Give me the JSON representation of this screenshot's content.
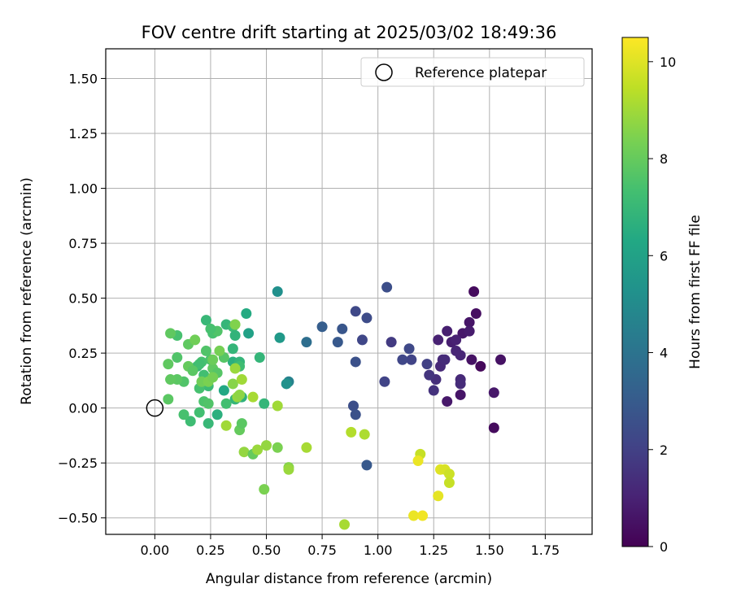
{
  "chart_data": {
    "type": "scatter",
    "title": "FOV centre drift starting at 2025/03/02 18:49:36",
    "xlabel": "Angular distance from reference (arcmin)",
    "ylabel": "Rotation from reference (arcmin)",
    "xlim": [
      -0.22,
      1.96
    ],
    "ylim": [
      -0.575,
      1.635
    ],
    "xticks": [
      "0.00",
      "0.25",
      "0.50",
      "0.75",
      "1.00",
      "1.25",
      "1.50",
      "1.75"
    ],
    "xtick_values": [
      0,
      0.25,
      0.5,
      0.75,
      1.0,
      1.25,
      1.5,
      1.75
    ],
    "yticks": [
      "−0.50",
      "−0.25",
      "0.00",
      "0.25",
      "0.50",
      "0.75",
      "1.00",
      "1.25",
      "1.50"
    ],
    "ytick_values": [
      -0.5,
      -0.25,
      0,
      0.25,
      0.5,
      0.75,
      1.0,
      1.25,
      1.5
    ],
    "grid": true,
    "legend": {
      "placement": "top-right",
      "label": "Reference platepar"
    },
    "reference_point": {
      "x": 0.0,
      "y": 0.0
    },
    "colorbar": {
      "label": "Hours from first FF file",
      "colormap": "viridis",
      "range": [
        0,
        10.5
      ],
      "ticks": [
        "0",
        "2",
        "4",
        "6",
        "8",
        "10"
      ],
      "tick_values": [
        0,
        2,
        4,
        6,
        8,
        10
      ]
    },
    "points": [
      {
        "x": 1.43,
        "y": 0.53,
        "h": 0.3
      },
      {
        "x": 1.44,
        "y": 0.43,
        "h": 0.4
      },
      {
        "x": 1.41,
        "y": 0.39,
        "h": 0.6
      },
      {
        "x": 1.38,
        "y": 0.34,
        "h": 0.7
      },
      {
        "x": 1.41,
        "y": 0.35,
        "h": 0.8
      },
      {
        "x": 1.31,
        "y": 0.35,
        "h": 0.9
      },
      {
        "x": 1.33,
        "y": 0.3,
        "h": 0.9
      },
      {
        "x": 1.35,
        "y": 0.31,
        "h": 1.0
      },
      {
        "x": 1.27,
        "y": 0.31,
        "h": 1.0
      },
      {
        "x": 1.35,
        "y": 0.26,
        "h": 1.1
      },
      {
        "x": 1.37,
        "y": 0.24,
        "h": 1.1
      },
      {
        "x": 1.42,
        "y": 0.22,
        "h": 0.5
      },
      {
        "x": 1.46,
        "y": 0.19,
        "h": 0.2
      },
      {
        "x": 1.55,
        "y": 0.22,
        "h": 0.5
      },
      {
        "x": 1.29,
        "y": 0.22,
        "h": 1.2
      },
      {
        "x": 1.28,
        "y": 0.19,
        "h": 1.2
      },
      {
        "x": 1.3,
        "y": 0.22,
        "h": 1.3
      },
      {
        "x": 1.31,
        "y": 0.03,
        "h": 0.7
      },
      {
        "x": 1.37,
        "y": 0.13,
        "h": 1.2
      },
      {
        "x": 1.37,
        "y": 0.11,
        "h": 1.3
      },
      {
        "x": 1.37,
        "y": 0.06,
        "h": 0.6
      },
      {
        "x": 1.52,
        "y": 0.07,
        "h": 0.7
      },
      {
        "x": 1.52,
        "y": -0.09,
        "h": 0.3
      },
      {
        "x": 1.26,
        "y": 0.13,
        "h": 1.4
      },
      {
        "x": 1.23,
        "y": 0.15,
        "h": 1.6
      },
      {
        "x": 1.25,
        "y": 0.08,
        "h": 1.5
      },
      {
        "x": 1.22,
        "y": 0.2,
        "h": 2.0
      },
      {
        "x": 1.15,
        "y": 0.22,
        "h": 2.1
      },
      {
        "x": 1.14,
        "y": 0.27,
        "h": 2.3
      },
      {
        "x": 1.11,
        "y": 0.22,
        "h": 2.2
      },
      {
        "x": 1.06,
        "y": 0.3,
        "h": 1.8
      },
      {
        "x": 1.03,
        "y": 0.12,
        "h": 2.1
      },
      {
        "x": 1.04,
        "y": 0.55,
        "h": 2.5
      },
      {
        "x": 0.95,
        "y": 0.41,
        "h": 2.4
      },
      {
        "x": 0.9,
        "y": 0.44,
        "h": 2.3
      },
      {
        "x": 0.93,
        "y": 0.31,
        "h": 2.2
      },
      {
        "x": 0.9,
        "y": 0.21,
        "h": 2.6
      },
      {
        "x": 0.84,
        "y": 0.36,
        "h": 2.8
      },
      {
        "x": 0.82,
        "y": 0.3,
        "h": 2.9
      },
      {
        "x": 0.75,
        "y": 0.37,
        "h": 3.1
      },
      {
        "x": 0.68,
        "y": 0.3,
        "h": 3.8
      },
      {
        "x": 0.89,
        "y": 0.01,
        "h": 2.5
      },
      {
        "x": 0.9,
        "y": -0.03,
        "h": 2.6
      },
      {
        "x": 0.95,
        "y": -0.26,
        "h": 2.9
      },
      {
        "x": 0.55,
        "y": 0.53,
        "h": 5.2
      },
      {
        "x": 0.56,
        "y": 0.32,
        "h": 5.6
      },
      {
        "x": 0.6,
        "y": 0.12,
        "h": 4.6
      },
      {
        "x": 0.59,
        "y": 0.11,
        "h": 5.3
      },
      {
        "x": 0.41,
        "y": 0.43,
        "h": 6.4
      },
      {
        "x": 0.42,
        "y": 0.34,
        "h": 6.0
      },
      {
        "x": 0.47,
        "y": 0.23,
        "h": 6.9
      },
      {
        "x": 0.49,
        "y": 0.02,
        "h": 6.9
      },
      {
        "x": 0.32,
        "y": 0.38,
        "h": 6.9
      },
      {
        "x": 0.35,
        "y": 0.37,
        "h": 7.1
      },
      {
        "x": 0.36,
        "y": 0.33,
        "h": 6.8
      },
      {
        "x": 0.35,
        "y": 0.27,
        "h": 6.9
      },
      {
        "x": 0.35,
        "y": 0.21,
        "h": 6.6
      },
      {
        "x": 0.38,
        "y": 0.21,
        "h": 6.9
      },
      {
        "x": 0.38,
        "y": 0.19,
        "h": 7.2
      },
      {
        "x": 0.36,
        "y": 0.04,
        "h": 6.9
      },
      {
        "x": 0.38,
        "y": 0.05,
        "h": 6.5
      },
      {
        "x": 0.39,
        "y": 0.05,
        "h": 6.7
      },
      {
        "x": 0.31,
        "y": 0.08,
        "h": 6.3
      },
      {
        "x": 0.28,
        "y": -0.03,
        "h": 6.6
      },
      {
        "x": 0.32,
        "y": 0.02,
        "h": 7.3
      },
      {
        "x": 0.23,
        "y": 0.4,
        "h": 7.0
      },
      {
        "x": 0.26,
        "y": 0.34,
        "h": 7.4
      },
      {
        "x": 0.28,
        "y": 0.35,
        "h": 7.6
      },
      {
        "x": 0.25,
        "y": 0.36,
        "h": 7.4
      },
      {
        "x": 0.23,
        "y": 0.26,
        "h": 7.6
      },
      {
        "x": 0.25,
        "y": 0.22,
        "h": 7.5
      },
      {
        "x": 0.21,
        "y": 0.21,
        "h": 7.4
      },
      {
        "x": 0.19,
        "y": 0.19,
        "h": 7.0
      },
      {
        "x": 0.2,
        "y": 0.2,
        "h": 7.3
      },
      {
        "x": 0.22,
        "y": 0.15,
        "h": 7.3
      },
      {
        "x": 0.24,
        "y": 0.1,
        "h": 7.1
      },
      {
        "x": 0.26,
        "y": 0.18,
        "h": 7.9
      },
      {
        "x": 0.28,
        "y": 0.16,
        "h": 7.7
      },
      {
        "x": 0.31,
        "y": 0.23,
        "h": 7.7
      },
      {
        "x": 0.2,
        "y": 0.09,
        "h": 7.4
      },
      {
        "x": 0.22,
        "y": 0.03,
        "h": 7.5
      },
      {
        "x": 0.24,
        "y": 0.02,
        "h": 7.6
      },
      {
        "x": 0.2,
        "y": -0.02,
        "h": 7.3
      },
      {
        "x": 0.24,
        "y": -0.07,
        "h": 7.0
      },
      {
        "x": 0.16,
        "y": -0.06,
        "h": 7.2
      },
      {
        "x": 0.13,
        "y": -0.03,
        "h": 7.4
      },
      {
        "x": 0.1,
        "y": 0.33,
        "h": 7.4
      },
      {
        "x": 0.15,
        "y": 0.29,
        "h": 7.9
      },
      {
        "x": 0.18,
        "y": 0.31,
        "h": 8.2
      },
      {
        "x": 0.07,
        "y": 0.34,
        "h": 7.9
      },
      {
        "x": 0.1,
        "y": 0.23,
        "h": 7.6
      },
      {
        "x": 0.06,
        "y": 0.2,
        "h": 7.9
      },
      {
        "x": 0.15,
        "y": 0.19,
        "h": 8.0
      },
      {
        "x": 0.17,
        "y": 0.17,
        "h": 7.8
      },
      {
        "x": 0.13,
        "y": 0.12,
        "h": 7.6
      },
      {
        "x": 0.1,
        "y": 0.13,
        "h": 7.8
      },
      {
        "x": 0.07,
        "y": 0.13,
        "h": 7.9
      },
      {
        "x": 0.06,
        "y": 0.04,
        "h": 7.8
      },
      {
        "x": 0.21,
        "y": 0.12,
        "h": 8.2
      },
      {
        "x": 0.26,
        "y": 0.22,
        "h": 8.1
      },
      {
        "x": 0.24,
        "y": 0.12,
        "h": 8.4
      },
      {
        "x": 0.29,
        "y": 0.26,
        "h": 8.3
      },
      {
        "x": 0.35,
        "y": 0.11,
        "h": 8.6
      },
      {
        "x": 0.37,
        "y": 0.05,
        "h": 8.8
      },
      {
        "x": 0.39,
        "y": 0.13,
        "h": 9.0
      },
      {
        "x": 0.44,
        "y": 0.05,
        "h": 9.1
      },
      {
        "x": 0.36,
        "y": 0.18,
        "h": 8.9
      },
      {
        "x": 0.38,
        "y": 0.06,
        "h": 8.7
      },
      {
        "x": 0.36,
        "y": 0.38,
        "h": 8.5
      },
      {
        "x": 0.26,
        "y": 0.14,
        "h": 8.3
      },
      {
        "x": 0.32,
        "y": -0.08,
        "h": 9.0
      },
      {
        "x": 0.38,
        "y": -0.1,
        "h": 8.0
      },
      {
        "x": 0.39,
        "y": -0.07,
        "h": 7.8
      },
      {
        "x": 0.4,
        "y": -0.2,
        "h": 8.8
      },
      {
        "x": 0.44,
        "y": -0.21,
        "h": 8.0
      },
      {
        "x": 0.46,
        "y": -0.19,
        "h": 8.9
      },
      {
        "x": 0.5,
        "y": -0.17,
        "h": 8.8
      },
      {
        "x": 0.55,
        "y": -0.18,
        "h": 8.4
      },
      {
        "x": 0.49,
        "y": -0.37,
        "h": 8.4
      },
      {
        "x": 0.55,
        "y": 0.01,
        "h": 9.0
      },
      {
        "x": 0.6,
        "y": -0.27,
        "h": 8.6
      },
      {
        "x": 0.6,
        "y": -0.28,
        "h": 8.9
      },
      {
        "x": 0.68,
        "y": -0.18,
        "h": 9.1
      },
      {
        "x": 0.88,
        "y": -0.11,
        "h": 9.3
      },
      {
        "x": 0.94,
        "y": -0.12,
        "h": 9.2
      },
      {
        "x": 0.85,
        "y": -0.53,
        "h": 9.1
      },
      {
        "x": 1.19,
        "y": -0.21,
        "h": 9.6
      },
      {
        "x": 1.18,
        "y": -0.24,
        "h": 10.2
      },
      {
        "x": 1.28,
        "y": -0.28,
        "h": 10.0
      },
      {
        "x": 1.3,
        "y": -0.28,
        "h": 9.9
      },
      {
        "x": 1.32,
        "y": -0.3,
        "h": 9.7
      },
      {
        "x": 1.32,
        "y": -0.34,
        "h": 9.6
      },
      {
        "x": 1.27,
        "y": -0.4,
        "h": 10.1
      },
      {
        "x": 1.16,
        "y": -0.49,
        "h": 10.2
      },
      {
        "x": 1.2,
        "y": -0.49,
        "h": 10.3
      }
    ]
  }
}
